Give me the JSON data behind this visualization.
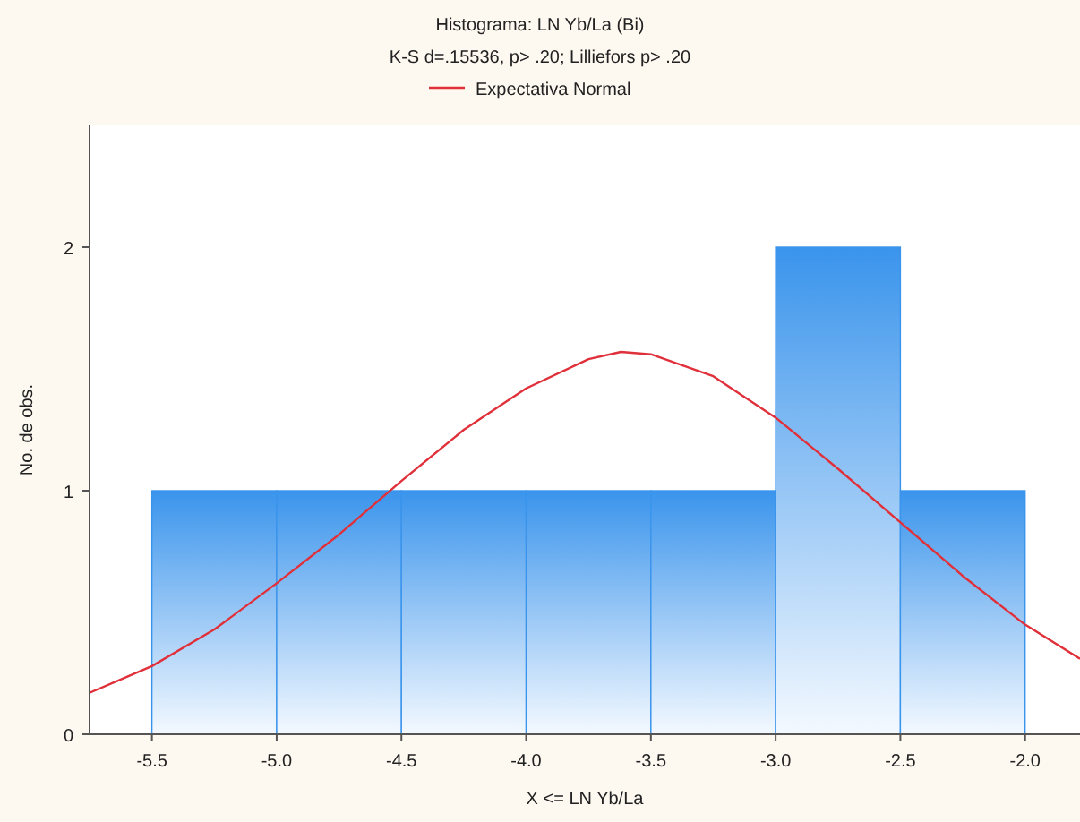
{
  "chart_data": {
    "type": "histogram",
    "title": "Histograma: LN Yb/La (Bi)",
    "subtitle": "K-S d=.15536, p> .20; Lilliefors p> .20",
    "xlabel": "X <= LN Yb/La",
    "ylabel": "No. de obs.",
    "bins": [
      -5.5,
      -5.0,
      -4.5,
      -4.0,
      -3.5,
      -3.0,
      -2.5,
      -2.0
    ],
    "values": [
      1,
      1,
      1,
      1,
      1,
      2,
      1
    ],
    "color": "#3a94ec",
    "series": [
      {
        "type": "line",
        "name": "Expectativa Normal",
        "color": "#e0303a",
        "x": [
          -5.75,
          -5.5,
          -5.25,
          -5.0,
          -4.75,
          -4.5,
          -4.25,
          -4.0,
          -3.75,
          -3.62,
          -3.5,
          -3.25,
          -3.0,
          -2.75,
          -2.5,
          -2.25,
          -2.0,
          -1.78
        ],
        "values": [
          0.17,
          0.28,
          0.43,
          0.62,
          0.82,
          1.04,
          1.25,
          1.42,
          1.54,
          1.57,
          1.56,
          1.47,
          1.3,
          1.09,
          0.87,
          0.65,
          0.45,
          0.31
        ]
      }
    ],
    "xlim": [
      -5.75,
      -1.78
    ],
    "ylim": [
      0,
      2.5
    ],
    "xticks": [
      -5.5,
      {
        "value": -5,
        "label": "-5.0"
      },
      -4.5,
      {
        "value": -4,
        "label": "-4.0"
      },
      -3.5,
      {
        "value": -3,
        "label": "-3.0"
      },
      -2.5,
      {
        "value": -2,
        "label": "-2.0"
      }
    ],
    "yticks": [
      0,
      1,
      2
    ],
    "legend": "top",
    "line_style": "solid"
  }
}
